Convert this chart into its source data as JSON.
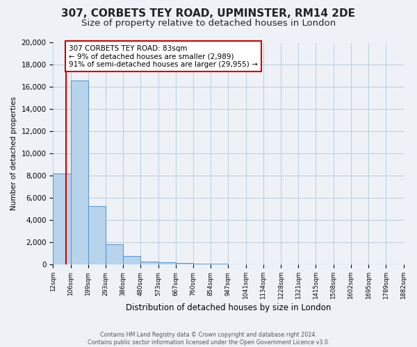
{
  "title": "307, CORBETS TEY ROAD, UPMINSTER, RM14 2DE",
  "subtitle": "Size of property relative to detached houses in London",
  "bar_values": [
    8200,
    16600,
    5300,
    1850,
    800,
    300,
    200,
    150,
    100,
    80,
    0,
    0,
    0,
    0,
    0,
    0,
    0,
    0,
    0,
    0
  ],
  "bin_labels": [
    "12sqm",
    "106sqm",
    "199sqm",
    "293sqm",
    "386sqm",
    "480sqm",
    "573sqm",
    "667sqm",
    "760sqm",
    "854sqm",
    "947sqm",
    "1041sqm",
    "1134sqm",
    "1228sqm",
    "1321sqm",
    "1415sqm",
    "1508sqm",
    "1602sqm",
    "1695sqm",
    "1789sqm",
    "1882sqm"
  ],
  "xlabel": "Distribution of detached houses by size in London",
  "ylabel": "Number of detached properties",
  "ylim": [
    0,
    20000
  ],
  "yticks": [
    0,
    2000,
    4000,
    6000,
    8000,
    10000,
    12000,
    14000,
    16000,
    18000,
    20000
  ],
  "bar_color": "#b8d4ea",
  "bar_edge_color": "#5b9bd5",
  "annotation_title": "307 CORBETS TEY ROAD: 83sqm",
  "annotation_line1": "← 9% of detached houses are smaller (2,989)",
  "annotation_line2": "91% of semi-detached houses are larger (29,955) →",
  "annotation_box_color": "#ffffff",
  "annotation_box_edge": "#cc0000",
  "footer_line1": "Contains HM Land Registry data © Crown copyright and database right 2024.",
  "footer_line2": "Contains public sector information licensed under the Open Government Licence v3.0.",
  "background_color": "#eef2f7",
  "plot_background": "#eef2f7",
  "grid_color": "#c0cfe0",
  "title_fontsize": 11,
  "subtitle_fontsize": 9.5
}
